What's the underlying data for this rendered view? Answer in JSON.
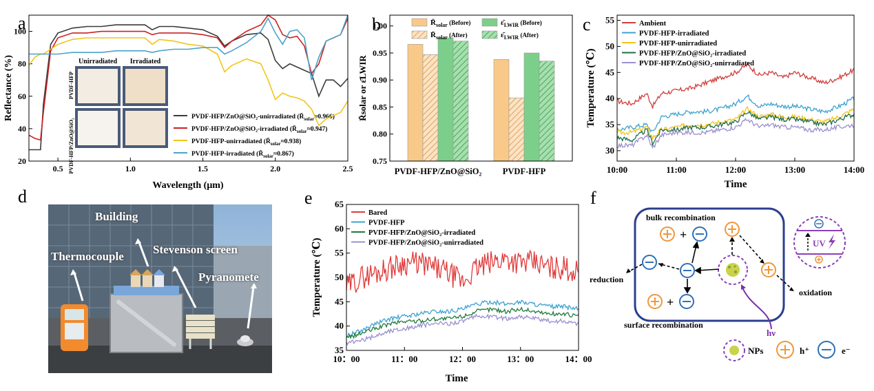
{
  "panels": {
    "a": {
      "letter": "a",
      "chart_data": {
        "type": "line",
        "xlabel": "Wavelength (μm)",
        "ylabel": "Reflectance (%)",
        "xlim": [
          0.3,
          2.5
        ],
        "ylim": [
          20,
          110
        ],
        "xticks": [
          "0.5",
          "1.0",
          "1.5",
          "2.0",
          "2.5"
        ],
        "yticks": [
          "20",
          "40",
          "60",
          "80",
          "100"
        ],
        "inset": {
          "col1": "Unirradiated",
          "col2": "Irradiated",
          "row1": "PVDF-HFP",
          "row2": "PVDF-HFP/ZnO@SiO₂"
        },
        "series": [
          {
            "name": "PVDF-HFP/ZnO@SiO₂-unirradiated",
            "rbar": "0.966",
            "color": "#3a3a3a",
            "x": [
              0.3,
              0.34,
              0.38,
              0.4,
              0.45,
              0.5,
              0.6,
              0.7,
              0.8,
              0.9,
              1.0,
              1.1,
              1.15,
              1.2,
              1.3,
              1.4,
              1.5,
              1.6,
              1.65,
              1.7,
              1.8,
              1.9,
              1.95,
              2.0,
              2.05,
              2.1,
              2.15,
              2.2,
              2.25,
              2.3,
              2.35,
              2.4,
              2.45,
              2.5
            ],
            "y": [
              27,
              27,
              27,
              55,
              92,
              99,
              102,
              103,
              103,
              104,
              104,
              104,
              101,
              103,
              103,
              102,
              101,
              97,
              91,
              94,
              98,
              99,
              95,
              82,
              77,
              80,
              78,
              76,
              74,
              60,
              70,
              70,
              66,
              71
            ]
          },
          {
            "name": "PVDF-HFP/ZnO@SiO₂-irradiated",
            "rbar": "0.947",
            "color": "#cc2020",
            "x": [
              0.3,
              0.34,
              0.38,
              0.4,
              0.45,
              0.5,
              0.6,
              0.7,
              0.8,
              0.9,
              1.0,
              1.1,
              1.15,
              1.2,
              1.3,
              1.4,
              1.5,
              1.6,
              1.65,
              1.7,
              1.8,
              1.9,
              1.95,
              2.0,
              2.05,
              2.1,
              2.15,
              2.2,
              2.25,
              2.3,
              2.35,
              2.4,
              2.45,
              2.5
            ],
            "y": [
              36,
              34,
              33,
              50,
              88,
              96,
              99,
              99,
              100,
              100,
              100,
              100,
              98,
              99,
              99,
              99,
              98,
              96,
              90,
              94,
              100,
              104,
              110,
              107,
              98,
              96,
              97,
              91,
              74,
              80,
              94,
              96,
              98,
              108
            ]
          },
          {
            "name": "PVDF-HFP-unirradiated",
            "rbar": "0.938",
            "color": "#f2c418",
            "x": [
              0.3,
              0.34,
              0.38,
              0.4,
              0.45,
              0.5,
              0.6,
              0.7,
              0.8,
              0.9,
              1.0,
              1.1,
              1.15,
              1.2,
              1.3,
              1.4,
              1.5,
              1.6,
              1.65,
              1.7,
              1.8,
              1.9,
              1.95,
              2.0,
              2.05,
              2.1,
              2.15,
              2.2,
              2.25,
              2.3,
              2.35,
              2.4,
              2.45,
              2.5
            ],
            "y": [
              79,
              84,
              86,
              86,
              89,
              92,
              95,
              96,
              96,
              96,
              96,
              96,
              92,
              95,
              94,
              92,
              91,
              86,
              75,
              79,
              83,
              80,
              70,
              58,
              62,
              60,
              59,
              57,
              52,
              42,
              46,
              48,
              50,
              57
            ]
          },
          {
            "name": "PVDF-HFP-irradiated",
            "rbar": "0.867",
            "color": "#4aa3c8",
            "x": [
              0.3,
              0.34,
              0.38,
              0.4,
              0.45,
              0.5,
              0.6,
              0.7,
              0.8,
              0.9,
              1.0,
              1.1,
              1.15,
              1.2,
              1.3,
              1.4,
              1.5,
              1.6,
              1.65,
              1.7,
              1.8,
              1.9,
              1.95,
              2.0,
              2.05,
              2.1,
              2.15,
              2.2,
              2.25,
              2.3,
              2.35,
              2.4,
              2.45,
              2.5
            ],
            "y": [
              86,
              86,
              86,
              86,
              86,
              86,
              87,
              87,
              87,
              88,
              88,
              88,
              87,
              88,
              89,
              89,
              90,
              90,
              86,
              88,
              93,
              100,
              108,
              99,
              92,
              100,
              101,
              96,
              70,
              84,
              94,
              96,
              98,
              110
            ]
          }
        ]
      }
    },
    "b": {
      "letter": "b",
      "chart_data": {
        "type": "bar",
        "ylabel": "R̄solar or ε̄LWIR",
        "ylim": [
          0.75,
          1.02
        ],
        "yticks": [
          "0.75",
          "0.80",
          "0.85",
          "0.90",
          "0.95",
          "1.00"
        ],
        "categories": [
          "PVDF-HFP/ZnO@SiO₂",
          "PVDF-HFP"
        ],
        "series": [
          {
            "name": "R̄solar (Before)",
            "sym": "R̄",
            "sub": "solar",
            "tag": "(Before)",
            "color": "#f9c98a",
            "hatch": false,
            "values": [
              0.966,
              0.938
            ]
          },
          {
            "name": "R̄solar (After)",
            "sym": "R̄",
            "sub": "solar",
            "tag": "(After)",
            "color": "#f9c98a",
            "hatch": true,
            "values": [
              0.947,
              0.867
            ]
          },
          {
            "name": "ε̄LWIR (Before)",
            "sym": "ε̄",
            "sub": "LWIR",
            "tag": "(Before)",
            "color": "#7ccf8a",
            "hatch": false,
            "values": [
              0.978,
              0.95
            ]
          },
          {
            "name": "ε̄LWIR (After)",
            "sym": "ε̄",
            "sub": "LWIR",
            "tag": "(After)",
            "color": "#7ccf8a",
            "hatch": true,
            "values": [
              0.972,
              0.935
            ]
          }
        ]
      }
    },
    "c": {
      "letter": "c",
      "chart_data": {
        "type": "line",
        "xlabel": "Time",
        "ylabel": "Temperature (℃)",
        "ylim": [
          28,
          56
        ],
        "yticks": [
          "30",
          "35",
          "40",
          "45",
          "50",
          "55"
        ],
        "xticks": [
          "10:00",
          "11:00",
          "12:00",
          "13:00",
          "14:00"
        ],
        "x": [
          10.0,
          10.25,
          10.5,
          10.6,
          10.75,
          11.0,
          11.25,
          11.5,
          11.75,
          12.0,
          12.2,
          12.4,
          12.6,
          12.8,
          13.0,
          13.25,
          13.5,
          13.75,
          14.0
        ],
        "series": [
          {
            "name": "Ambient",
            "color": "#d23c3c",
            "values": [
              39.5,
              39,
              41,
              38.5,
              41,
              41.5,
              42,
              43,
              44,
              45,
              46.5,
              44.5,
              45,
              44,
              45,
              44,
              43,
              44,
              45.5
            ]
          },
          {
            "name": "PVDF-HFP-irradiated",
            "color": "#3fa2d0",
            "values": [
              34,
              34.5,
              35,
              33.5,
              36.5,
              37,
              37.5,
              37.5,
              38,
              39,
              40.5,
              38.5,
              39,
              38.5,
              38.5,
              38,
              37.5,
              38.5,
              40
            ]
          },
          {
            "name": "PVDF-HFP-unirradiated",
            "color": "#f2c418",
            "values": [
              33.5,
              33.5,
              34.5,
              32.5,
              34,
              34.5,
              35,
              35,
              35.5,
              36,
              38,
              36.5,
              37,
              36.5,
              36.5,
              36,
              35.5,
              36.5,
              38
            ]
          },
          {
            "name": "PVDF-HFP/ZnO@SiO₂-irradiated",
            "color": "#1f6b4a",
            "values": [
              32.5,
              32,
              34,
              31.5,
              34,
              34,
              34.5,
              34.5,
              35,
              35.5,
              37.5,
              36,
              36.5,
              36,
              36,
              35.5,
              35,
              36,
              37
            ]
          },
          {
            "name": "PVDF-HFP/ZnO@SiO₂-unirradiated",
            "color": "#9b8fcf",
            "values": [
              31,
              31,
              33,
              30.5,
              33,
              33.5,
              33.5,
              33.5,
              34,
              34.5,
              36,
              34.5,
              35,
              34.5,
              34.5,
              34,
              34,
              34.5,
              35
            ]
          }
        ]
      }
    },
    "d": {
      "letter": "d",
      "labels": {
        "building": "Building",
        "stevenson": "Stevenson screen",
        "thermocouple": "Thermocouple",
        "pyranometer": "Pyranomete"
      }
    },
    "e": {
      "letter": "e",
      "chart_data": {
        "type": "line",
        "xlabel": "Time",
        "ylabel": "Temperature (℃)",
        "ylim": [
          35,
          65
        ],
        "yticks": [
          "35",
          "40",
          "45",
          "50",
          "55",
          "60",
          "65"
        ],
        "xticks": [
          "10：00",
          "11：00",
          "12：00",
          "13：00",
          "14：00"
        ],
        "x": [
          10.0,
          10.25,
          10.5,
          10.75,
          11.0,
          11.25,
          11.5,
          11.75,
          12.0,
          12.25,
          12.5,
          12.75,
          13.0,
          13.25,
          13.5,
          13.75,
          14.0
        ],
        "series": [
          {
            "name": "Bared",
            "color": "#e03a3a",
            "values": [
              48,
              50,
              51,
              52,
              53,
              53,
              52,
              51,
              49,
              52,
              53,
              54,
              53,
              53,
              52,
              52,
              51
            ]
          },
          {
            "name": "PVDF-HFP",
            "color": "#3fa2d0",
            "values": [
              38,
              39,
              40.5,
              41.5,
              42,
              42.5,
              43,
              43,
              43.5,
              44.5,
              45,
              44.5,
              45,
              44.5,
              44,
              44,
              43.5
            ]
          },
          {
            "name": "PVDF-HFP/ZnO@SiO₂-irradiated",
            "color": "#1f7a3a",
            "values": [
              37.5,
              38.5,
              39.5,
              40.5,
              41,
              41,
              41.5,
              41.5,
              42,
              43,
              43.5,
              43,
              43.5,
              43,
              42.5,
              42.5,
              42
            ]
          },
          {
            "name": "PVDF-HFP/ZnO@SiO₂-unirradiated",
            "color": "#9b8fcf",
            "values": [
              36.5,
              37,
              38,
              39,
              39.5,
              40,
              40.5,
              40.5,
              41,
              42,
              42,
              41.5,
              42,
              41.5,
              41,
              41,
              40.5
            ]
          }
        ]
      }
    },
    "f": {
      "letter": "f",
      "labels": {
        "bulk": "bulk recombination",
        "surface": "surface recombination",
        "reduction": "reduction",
        "oxidation": "oxidation",
        "hv": "hν",
        "uv": "UV",
        "nps": "NPs",
        "hole": "h⁺",
        "electron": "e⁻",
        "plus": "+"
      }
    }
  }
}
